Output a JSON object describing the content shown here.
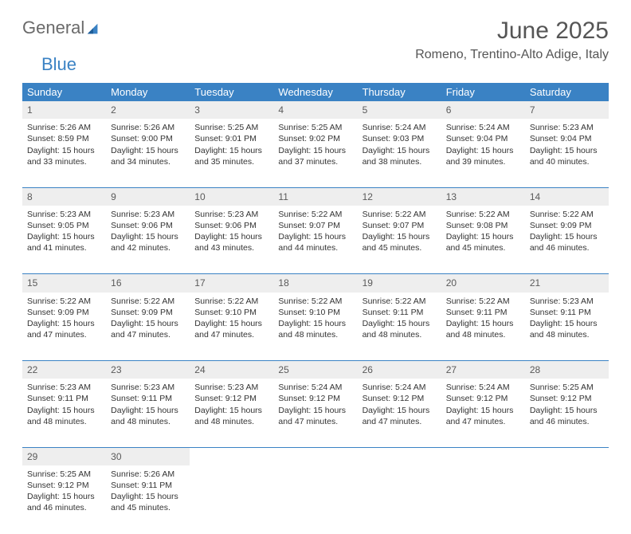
{
  "brand": {
    "word1": "General",
    "word2": "Blue"
  },
  "title": "June 2025",
  "location": "Romeno, Trentino-Alto Adige, Italy",
  "colors": {
    "header_bg": "#3a82c4",
    "header_text": "#ffffff",
    "daynum_bg": "#eeeeee",
    "rule": "#3a82c4",
    "body_text": "#333333",
    "brand_gray": "#6a6a6a",
    "brand_blue": "#3a82c4"
  },
  "weekdays": [
    "Sunday",
    "Monday",
    "Tuesday",
    "Wednesday",
    "Thursday",
    "Friday",
    "Saturday"
  ],
  "weeks": [
    [
      {
        "day": "1",
        "sunrise": "5:26 AM",
        "sunset": "8:59 PM",
        "daylight": "15 hours and 33 minutes."
      },
      {
        "day": "2",
        "sunrise": "5:26 AM",
        "sunset": "9:00 PM",
        "daylight": "15 hours and 34 minutes."
      },
      {
        "day": "3",
        "sunrise": "5:25 AM",
        "sunset": "9:01 PM",
        "daylight": "15 hours and 35 minutes."
      },
      {
        "day": "4",
        "sunrise": "5:25 AM",
        "sunset": "9:02 PM",
        "daylight": "15 hours and 37 minutes."
      },
      {
        "day": "5",
        "sunrise": "5:24 AM",
        "sunset": "9:03 PM",
        "daylight": "15 hours and 38 minutes."
      },
      {
        "day": "6",
        "sunrise": "5:24 AM",
        "sunset": "9:04 PM",
        "daylight": "15 hours and 39 minutes."
      },
      {
        "day": "7",
        "sunrise": "5:23 AM",
        "sunset": "9:04 PM",
        "daylight": "15 hours and 40 minutes."
      }
    ],
    [
      {
        "day": "8",
        "sunrise": "5:23 AM",
        "sunset": "9:05 PM",
        "daylight": "15 hours and 41 minutes."
      },
      {
        "day": "9",
        "sunrise": "5:23 AM",
        "sunset": "9:06 PM",
        "daylight": "15 hours and 42 minutes."
      },
      {
        "day": "10",
        "sunrise": "5:23 AM",
        "sunset": "9:06 PM",
        "daylight": "15 hours and 43 minutes."
      },
      {
        "day": "11",
        "sunrise": "5:22 AM",
        "sunset": "9:07 PM",
        "daylight": "15 hours and 44 minutes."
      },
      {
        "day": "12",
        "sunrise": "5:22 AM",
        "sunset": "9:07 PM",
        "daylight": "15 hours and 45 minutes."
      },
      {
        "day": "13",
        "sunrise": "5:22 AM",
        "sunset": "9:08 PM",
        "daylight": "15 hours and 45 minutes."
      },
      {
        "day": "14",
        "sunrise": "5:22 AM",
        "sunset": "9:09 PM",
        "daylight": "15 hours and 46 minutes."
      }
    ],
    [
      {
        "day": "15",
        "sunrise": "5:22 AM",
        "sunset": "9:09 PM",
        "daylight": "15 hours and 47 minutes."
      },
      {
        "day": "16",
        "sunrise": "5:22 AM",
        "sunset": "9:09 PM",
        "daylight": "15 hours and 47 minutes."
      },
      {
        "day": "17",
        "sunrise": "5:22 AM",
        "sunset": "9:10 PM",
        "daylight": "15 hours and 47 minutes."
      },
      {
        "day": "18",
        "sunrise": "5:22 AM",
        "sunset": "9:10 PM",
        "daylight": "15 hours and 48 minutes."
      },
      {
        "day": "19",
        "sunrise": "5:22 AM",
        "sunset": "9:11 PM",
        "daylight": "15 hours and 48 minutes."
      },
      {
        "day": "20",
        "sunrise": "5:22 AM",
        "sunset": "9:11 PM",
        "daylight": "15 hours and 48 minutes."
      },
      {
        "day": "21",
        "sunrise": "5:23 AM",
        "sunset": "9:11 PM",
        "daylight": "15 hours and 48 minutes."
      }
    ],
    [
      {
        "day": "22",
        "sunrise": "5:23 AM",
        "sunset": "9:11 PM",
        "daylight": "15 hours and 48 minutes."
      },
      {
        "day": "23",
        "sunrise": "5:23 AM",
        "sunset": "9:11 PM",
        "daylight": "15 hours and 48 minutes."
      },
      {
        "day": "24",
        "sunrise": "5:23 AM",
        "sunset": "9:12 PM",
        "daylight": "15 hours and 48 minutes."
      },
      {
        "day": "25",
        "sunrise": "5:24 AM",
        "sunset": "9:12 PM",
        "daylight": "15 hours and 47 minutes."
      },
      {
        "day": "26",
        "sunrise": "5:24 AM",
        "sunset": "9:12 PM",
        "daylight": "15 hours and 47 minutes."
      },
      {
        "day": "27",
        "sunrise": "5:24 AM",
        "sunset": "9:12 PM",
        "daylight": "15 hours and 47 minutes."
      },
      {
        "day": "28",
        "sunrise": "5:25 AM",
        "sunset": "9:12 PM",
        "daylight": "15 hours and 46 minutes."
      }
    ],
    [
      {
        "day": "29",
        "sunrise": "5:25 AM",
        "sunset": "9:12 PM",
        "daylight": "15 hours and 46 minutes."
      },
      {
        "day": "30",
        "sunrise": "5:26 AM",
        "sunset": "9:11 PM",
        "daylight": "15 hours and 45 minutes."
      },
      null,
      null,
      null,
      null,
      null
    ]
  ],
  "labels": {
    "sunrise": "Sunrise:",
    "sunset": "Sunset:",
    "daylight": "Daylight:"
  }
}
